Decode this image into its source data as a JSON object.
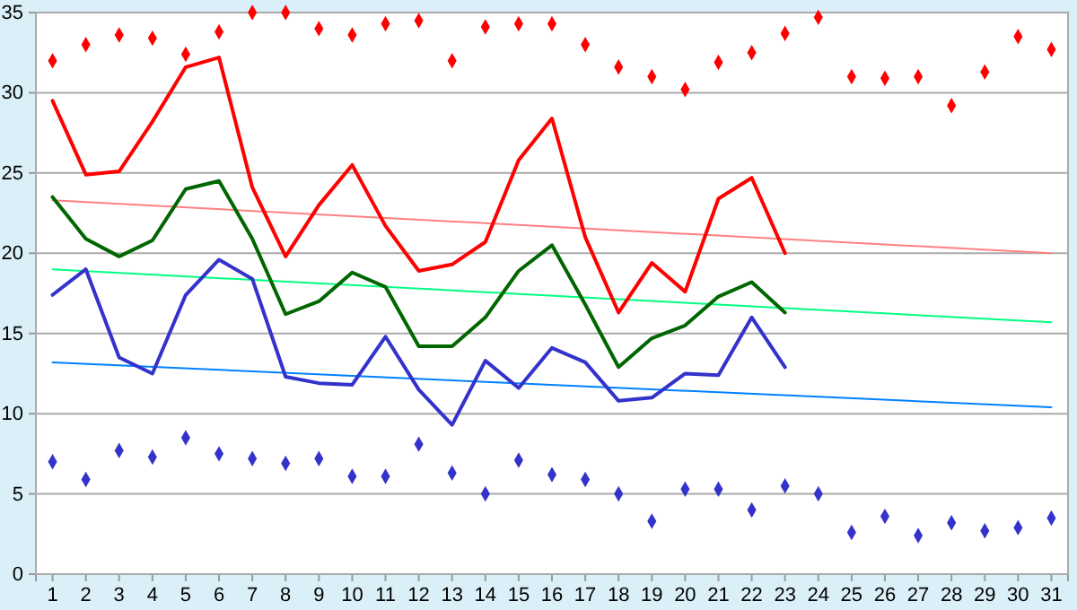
{
  "chart_data": {
    "type": "line",
    "xlim": [
      0.5,
      31.5
    ],
    "xticks": [
      1,
      2,
      3,
      4,
      5,
      6,
      7,
      8,
      9,
      10,
      11,
      12,
      13,
      14,
      15,
      16,
      17,
      18,
      19,
      20,
      21,
      22,
      23,
      24,
      25,
      26,
      27,
      28,
      29,
      30,
      31
    ],
    "ylim": [
      0,
      35
    ],
    "yticks": [
      0,
      5,
      10,
      15,
      20,
      25,
      30,
      35
    ],
    "grid": "y",
    "x": [
      1,
      2,
      3,
      4,
      5,
      6,
      7,
      8,
      9,
      10,
      11,
      12,
      13,
      14,
      15,
      16,
      17,
      18,
      19,
      20,
      21,
      22,
      23
    ],
    "series": [
      {
        "type": "scatter",
        "marker": "diamond",
        "color": "#ff0000",
        "x": [
          1,
          2,
          3,
          4,
          5,
          6,
          7,
          8,
          9,
          10,
          11,
          12,
          13,
          14,
          15,
          16,
          17,
          18,
          19,
          20,
          21,
          22,
          23,
          24,
          25,
          26,
          27,
          28,
          29,
          30,
          31
        ],
        "values": [
          32.0,
          33.0,
          33.6,
          33.4,
          32.4,
          33.8,
          35.0,
          35.0,
          34.0,
          33.6,
          34.3,
          34.5,
          32.0,
          34.1,
          34.3,
          34.3,
          33.0,
          31.6,
          31.0,
          30.2,
          31.9,
          32.5,
          33.7,
          34.7,
          31.0,
          30.9,
          31.0,
          29.2,
          31.3,
          33.5,
          32.7
        ]
      },
      {
        "type": "scatter",
        "marker": "diamond",
        "color": "#3333cc",
        "x": [
          1,
          2,
          3,
          4,
          5,
          6,
          7,
          8,
          9,
          10,
          11,
          12,
          13,
          14,
          15,
          16,
          17,
          18,
          19,
          20,
          21,
          22,
          23,
          24,
          25,
          26,
          27,
          28,
          29,
          30,
          31
        ],
        "values": [
          7.0,
          5.9,
          7.7,
          7.3,
          8.5,
          7.5,
          7.2,
          6.9,
          7.2,
          6.1,
          6.1,
          8.1,
          6.3,
          5.0,
          7.1,
          6.2,
          5.9,
          5.0,
          3.3,
          5.3,
          5.3,
          4.0,
          5.5,
          5.0,
          2.6,
          3.6,
          2.4,
          3.2,
          2.7,
          2.9,
          3.5
        ]
      },
      {
        "color": "#ff8080",
        "x": [
          1,
          31
        ],
        "values": [
          23.3,
          20.0
        ]
      },
      {
        "color": "#00ff80",
        "x": [
          1,
          31
        ],
        "values": [
          19.0,
          15.7
        ]
      },
      {
        "color": "#0080ff",
        "x": [
          1,
          31
        ],
        "values": [
          13.2,
          10.4
        ]
      },
      {
        "color": "#ff0000",
        "values": [
          29.5,
          24.9,
          25.1,
          28.2,
          31.6,
          32.2,
          24.1,
          19.8,
          23.0,
          25.5,
          21.7,
          18.9,
          19.3,
          20.7,
          25.8,
          28.4,
          21.0,
          16.3,
          19.4,
          17.6,
          23.4,
          24.7,
          20.0
        ]
      },
      {
        "color": "#006600",
        "values": [
          23.5,
          20.9,
          19.8,
          20.8,
          24.0,
          24.5,
          20.9,
          16.2,
          17.0,
          18.8,
          17.9,
          14.2,
          14.2,
          16.0,
          18.9,
          20.5,
          16.8,
          12.9,
          14.7,
          15.5,
          17.3,
          18.2,
          16.3
        ]
      },
      {
        "color": "#3333cc",
        "values": [
          17.4,
          19.0,
          13.5,
          12.5,
          17.4,
          19.6,
          18.4,
          12.3,
          11.9,
          11.8,
          14.8,
          11.5,
          9.3,
          13.3,
          11.6,
          14.1,
          13.2,
          10.8,
          11.0,
          12.5,
          12.4,
          16.0,
          12.9
        ]
      }
    ]
  }
}
